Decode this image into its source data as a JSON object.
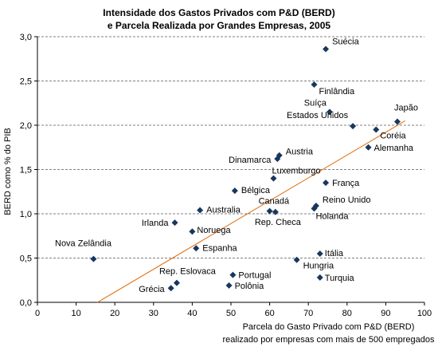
{
  "chart_data": {
    "type": "scatter",
    "title_lines": [
      "Intensidade dos Gastos Privados com P&D (BERD)",
      "e Parcela Realizada por Grandes Empresas, 2005"
    ],
    "xlabel_lines": [
      "Parcela do Gasto Privado com P&D (BERD)",
      "realizado por empresas com mais de 500 empregados"
    ],
    "ylabel": "BERD como % do PIB",
    "xlim": [
      0,
      100
    ],
    "ylim": [
      0,
      3.0
    ],
    "xticks": [
      "0",
      "10",
      "20",
      "30",
      "40",
      "50",
      "60",
      "70",
      "80",
      "90",
      "100"
    ],
    "yticks": [
      "0,0",
      "0,5",
      "1,0",
      "1,5",
      "2,0",
      "2,5",
      "3,0"
    ],
    "grid": "horizontal dashed",
    "marker_color": "#17375e",
    "trendline_color": "#e36c09",
    "trendline": [
      [
        15.5,
        0.0
      ],
      [
        95.0,
        2.05
      ]
    ],
    "points": [
      {
        "label": "Suécia",
        "x": 74.5,
        "y": 2.86
      },
      {
        "label": "Finlândia",
        "x": 71.5,
        "y": 2.46
      },
      {
        "label": "Suíça",
        "x": 75.5,
        "y": 2.15
      },
      {
        "label": "Estados Unidos",
        "x": 81.5,
        "y": 1.99
      },
      {
        "label": "Japão",
        "x": 93.0,
        "y": 2.04
      },
      {
        "label": "Coréia",
        "x": 87.5,
        "y": 1.95
      },
      {
        "label": "Alemanha",
        "x": 85.5,
        "y": 1.75
      },
      {
        "label": "Austria",
        "x": 62.5,
        "y": 1.66
      },
      {
        "label": "Dinamarca",
        "x": 62.0,
        "y": 1.62
      },
      {
        "label": "Luxemburgo",
        "x": 61.0,
        "y": 1.4
      },
      {
        "label": "França",
        "x": 74.5,
        "y": 1.35
      },
      {
        "label": "Bélgica",
        "x": 51.0,
        "y": 1.26
      },
      {
        "label": "Canadá",
        "x": 60.0,
        "y": 1.03
      },
      {
        "label": "Rep. Checa",
        "x": 61.5,
        "y": 1.02
      },
      {
        "label": "Reino Unido",
        "x": 72.0,
        "y": 1.09
      },
      {
        "label": "Holanda",
        "x": 71.5,
        "y": 1.06
      },
      {
        "label": "Australia",
        "x": 42.0,
        "y": 1.04
      },
      {
        "label": "Irlanda",
        "x": 35.5,
        "y": 0.9
      },
      {
        "label": "Noruega",
        "x": 40.0,
        "y": 0.8
      },
      {
        "label": "Espanha",
        "x": 41.0,
        "y": 0.61
      },
      {
        "label": "Nova Zelândia",
        "x": 14.5,
        "y": 0.49
      },
      {
        "label": "Itália",
        "x": 73.0,
        "y": 0.55
      },
      {
        "label": "Hungria",
        "x": 67.0,
        "y": 0.48
      },
      {
        "label": "Portugal",
        "x": 50.5,
        "y": 0.31
      },
      {
        "label": "Turquia",
        "x": 73.0,
        "y": 0.28
      },
      {
        "label": "Rep. Eslovaca",
        "x": 36.0,
        "y": 0.22
      },
      {
        "label": "Polônia",
        "x": 49.5,
        "y": 0.19
      },
      {
        "label": "Grécia",
        "x": 34.5,
        "y": 0.16
      }
    ]
  }
}
